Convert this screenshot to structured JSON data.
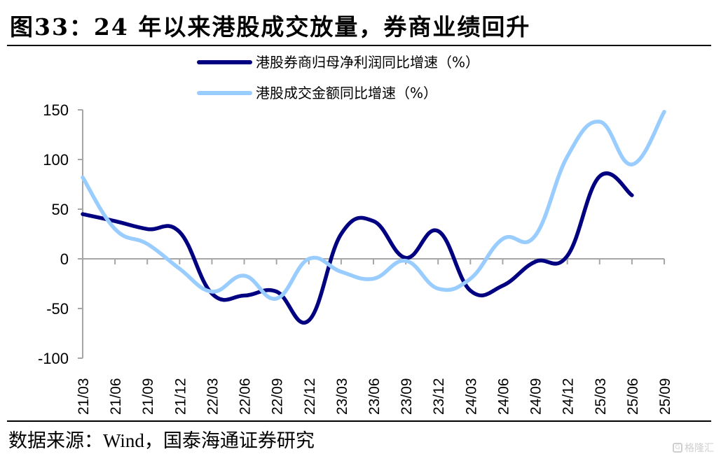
{
  "title": "图33：24 年以来港股成交放量，券商业绩回升",
  "source": "数据来源：Wind，国泰海通证券研究",
  "watermark": {
    "icon": "g-logo-icon",
    "text": "格隆汇"
  },
  "chart_data": {
    "type": "line",
    "title": "图33：24 年以来港股成交放量，券商业绩回升",
    "xlabel": "",
    "ylabel": "",
    "ylim": [
      -100,
      150
    ],
    "yticks": [
      150,
      100,
      50,
      0,
      -50,
      -100
    ],
    "grid": false,
    "legend_position": "top-center",
    "categories": [
      "21/03",
      "21/06",
      "21/09",
      "21/12",
      "22/03",
      "22/06",
      "22/09",
      "22/12",
      "23/03",
      "23/06",
      "23/09",
      "23/12",
      "24/03",
      "24/06",
      "24/09",
      "24/12",
      "25/03",
      "25/06",
      "25/09"
    ],
    "x_tick_labels": [
      "21/03",
      "21/06",
      "21/09",
      "21/12",
      "22/03",
      "22/06",
      "22/09",
      "22/12",
      "23/03",
      "23/06",
      "23/09",
      "23/12",
      "24/03",
      "24/06",
      "24/09",
      "24/12",
      "25/03",
      "25/06",
      "25/09"
    ],
    "series": [
      {
        "name": "港股券商归母净利润同比增速（%）",
        "color": "#000080",
        "values": [
          45,
          38,
          30,
          27,
          -35,
          -37,
          -33,
          -62,
          25,
          38,
          1,
          28,
          -32,
          -27,
          -3,
          3,
          83,
          64,
          null
        ]
      },
      {
        "name": "港股成交金额同比增速（%）",
        "color": "#99CCFF",
        "values": [
          82,
          30,
          15,
          -10,
          -33,
          -17,
          -40,
          0,
          -13,
          -20,
          -2,
          -30,
          -20,
          20,
          23,
          103,
          138,
          95,
          148
        ]
      }
    ]
  }
}
